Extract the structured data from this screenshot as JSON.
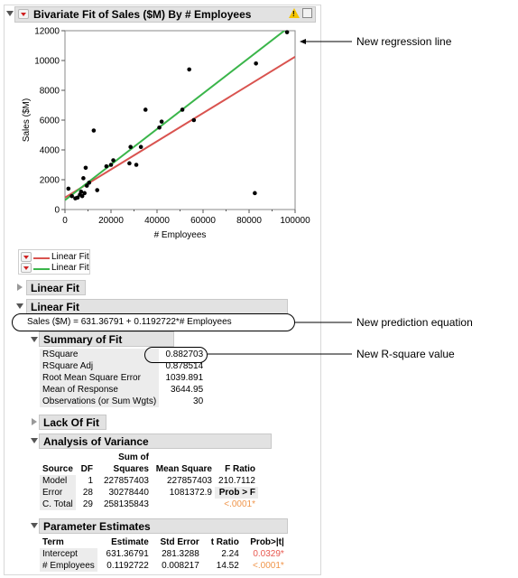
{
  "report": {
    "title": "Bivariate Fit of Sales ($M) By # Employees"
  },
  "chart_data": {
    "type": "scatter",
    "xlabel": "# Employees",
    "ylabel": "Sales ($M)",
    "xlim": [
      0,
      100000
    ],
    "ylim": [
      0,
      12000
    ],
    "xticks": [
      "0",
      "20000",
      "40000",
      "60000",
      "80000",
      "100000"
    ],
    "yticks": [
      "0",
      "2000",
      "4000",
      "6000",
      "8000",
      "10000",
      "12000"
    ],
    "points": [
      [
        1500,
        1400
      ],
      [
        3000,
        900
      ],
      [
        4500,
        750
      ],
      [
        5500,
        800
      ],
      [
        6500,
        1000
      ],
      [
        7000,
        1200
      ],
      [
        7500,
        900
      ],
      [
        8000,
        2100
      ],
      [
        8500,
        1100
      ],
      [
        9000,
        2800
      ],
      [
        9500,
        1600
      ],
      [
        10500,
        1800
      ],
      [
        12500,
        5300
      ],
      [
        14000,
        1300
      ],
      [
        18000,
        2900
      ],
      [
        20000,
        3000
      ],
      [
        21000,
        3300
      ],
      [
        28000,
        3100
      ],
      [
        28500,
        4200
      ],
      [
        31000,
        3000
      ],
      [
        33000,
        4200
      ],
      [
        35000,
        6700
      ],
      [
        41000,
        5500
      ],
      [
        42000,
        5900
      ],
      [
        51000,
        6700
      ],
      [
        54000,
        9400
      ],
      [
        56000,
        6000
      ],
      [
        82500,
        1100
      ],
      [
        83000,
        9800
      ],
      [
        96500,
        11900
      ]
    ],
    "lines": [
      {
        "name": "Linear Fit",
        "color": "#d9534f",
        "intercept": 800,
        "slope": 0.0945
      },
      {
        "name": "Linear Fit",
        "color": "#3ab54a",
        "intercept": 631.36791,
        "slope": 0.1192722
      }
    ]
  },
  "legend": {
    "items": [
      {
        "label": "Linear Fit",
        "color": "#d9534f"
      },
      {
        "label": "Linear Fit",
        "color": "#3ab54a"
      }
    ]
  },
  "sections": {
    "linear_fit_collapsed": "Linear Fit",
    "linear_fit_open": "Linear Fit",
    "equation": "Sales ($M) = 631.36791 + 0.1192722*# Employees",
    "summary_of_fit": "Summary of Fit",
    "lack_of_fit": "Lack Of Fit",
    "anova": "Analysis of Variance",
    "param_est": "Parameter Estimates"
  },
  "summary": {
    "rows": [
      {
        "label": "RSquare",
        "value": "0.882703"
      },
      {
        "label": "RSquare Adj",
        "value": "0.878514"
      },
      {
        "label": "Root Mean Square Error",
        "value": "1039.891"
      },
      {
        "label": "Mean of Response",
        "value": "3644.95"
      },
      {
        "label": "Observations (or Sum Wgts)",
        "value": "30"
      }
    ]
  },
  "anova": {
    "header_top": "Sum of",
    "headers": [
      "Source",
      "DF",
      "Squares",
      "Mean Square",
      "F Ratio"
    ],
    "rows": [
      [
        "Model",
        "1",
        "227857403",
        "227857403",
        "210.7112"
      ],
      [
        "Error",
        "28",
        "30278440",
        "1081372.9",
        "Prob > F"
      ],
      [
        "C. Total",
        "29",
        "258135843",
        "",
        "<.0001*"
      ]
    ]
  },
  "params": {
    "headers": [
      "Term",
      "Estimate",
      "Std Error",
      "t Ratio",
      "Prob>|t|"
    ],
    "rows": [
      [
        "Intercept",
        "631.36791",
        "281.3288",
        "2.24",
        "0.0329*"
      ],
      [
        "# Employees",
        "0.1192722",
        "0.008217",
        "14.52",
        "<.0001*"
      ]
    ]
  },
  "callouts": {
    "line": "New regression line",
    "equation": "New prediction equation",
    "rsquare": "New R-square value"
  }
}
